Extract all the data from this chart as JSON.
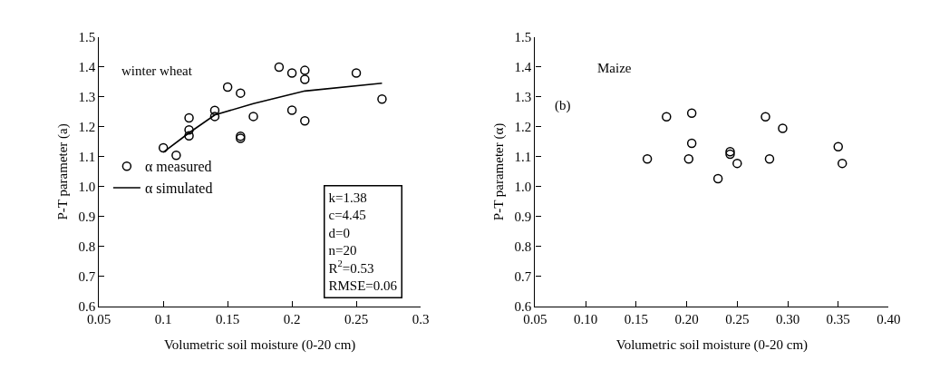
{
  "chart_data": [
    {
      "type": "scatter",
      "xlabel": "Volumetric soil moisture (0-20 cm)",
      "ylabel": "P-T parameter (a)",
      "xlim": [
        0.05,
        0.3
      ],
      "xticks": [
        0.05,
        0.1,
        0.15,
        0.2,
        0.25,
        0.3
      ],
      "ylim": [
        0.6,
        1.5
      ],
      "yticks": [
        0.6,
        0.7,
        0.8,
        0.9,
        {
          "value": 1,
          "label": "1.0"
        },
        1.1,
        1.2,
        1.3,
        1.4,
        1.5
      ],
      "grid": false,
      "legend": "left",
      "series": [
        {
          "name": "α measured",
          "marker": "circle",
          "color": "#000000",
          "x": [
            0.1,
            0.11,
            0.12,
            0.12,
            0.12,
            0.14,
            0.14,
            0.15,
            0.16,
            0.16,
            0.16,
            0.17,
            0.19,
            0.2,
            0.2,
            0.21,
            0.21,
            0.21,
            0.25,
            0.27
          ],
          "values": [
            1.13,
            1.105,
            1.23,
            1.19,
            1.17,
            1.255,
            1.235,
            1.333,
            1.313,
            1.169,
            1.162,
            1.235,
            1.4,
            1.38,
            1.256,
            1.389,
            1.359,
            1.22,
            1.38,
            1.293
          ]
        },
        {
          "name": "α simulated",
          "type": "line",
          "color": "#000000",
          "line_style": "solid",
          "x": [
            0.1,
            0.12,
            0.14,
            0.17,
            0.21,
            0.27
          ],
          "values": [
            1.115,
            1.18,
            1.24,
            1.278,
            1.32,
            1.346
          ]
        }
      ],
      "annotations": [
        "winter wheat",
        "k=1.38\nc=4.45\nd=0\nn=20\nR$^{2}$=0.53\nRMSE=0.06"
      ]
    },
    {
      "type": "scatter",
      "xlabel": "Volumetric soil moisture (0-20 cm)",
      "ylabel": "P-T parameter (α)",
      "xlim": [
        0.05,
        0.4
      ],
      "xticks": [
        0.05,
        {
          "value": 0.1,
          "label": "0.10"
        },
        0.15,
        {
          "value": 0.2,
          "label": "0.20"
        },
        0.25,
        {
          "value": 0.3,
          "label": "0.30"
        },
        0.35,
        {
          "value": 0.4,
          "label": "0.40"
        }
      ],
      "ylim": [
        0.6,
        1.5
      ],
      "yticks": [
        0.6,
        0.7,
        0.8,
        0.9,
        {
          "value": 1,
          "label": "1.0"
        },
        1.1,
        1.2,
        1.3,
        1.4,
        1.5
      ],
      "grid": false,
      "legend": false,
      "marker": "circle",
      "series": [
        {
          "color": "#000000",
          "x": [
            0.161,
            0.18,
            0.205,
            0.205,
            0.202,
            0.231,
            0.243,
            0.243,
            0.25,
            0.278,
            0.282,
            0.295,
            0.35,
            0.354
          ],
          "values": [
            1.093,
            1.234,
            1.246,
            1.145,
            1.093,
            1.027,
            1.117,
            1.109,
            1.078,
            1.234,
            1.093,
            1.195,
            1.134,
            1.078
          ]
        }
      ],
      "annotations": [
        "Maize",
        "(b)"
      ]
    }
  ]
}
